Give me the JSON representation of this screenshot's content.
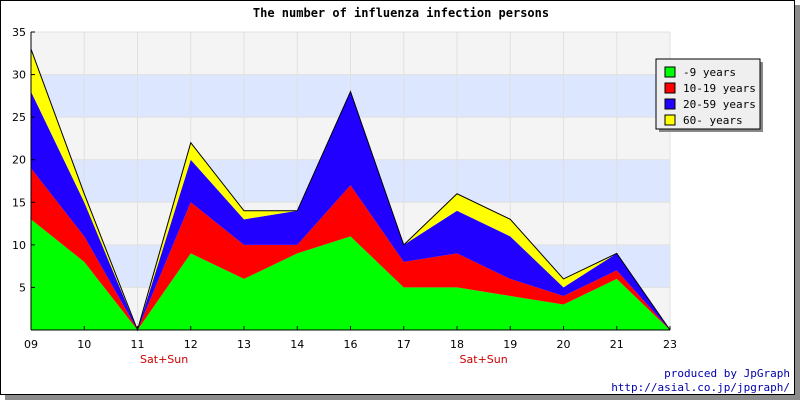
{
  "chart_data": {
    "type": "area",
    "stacked": true,
    "title": "The number of influenza infection persons",
    "categories": [
      "09",
      "10",
      "11",
      "12",
      "13",
      "14",
      "16",
      "17",
      "18",
      "19",
      "20",
      "21",
      "23"
    ],
    "weekend_marks": [
      {
        "after_index": 3,
        "label": "Sat+Sun"
      },
      {
        "after_index": 9,
        "label": "Sat+Sun"
      }
    ],
    "ylim": [
      0,
      35
    ],
    "yticks": [
      5,
      10,
      15,
      20,
      25,
      30,
      35
    ],
    "grid": true,
    "legend_position": "top-right",
    "series": [
      {
        "name": "-9 years",
        "color": "#00ff00",
        "values": [
          13,
          8,
          0,
          9,
          6,
          9,
          11,
          5,
          5,
          4,
          3,
          6,
          0
        ]
      },
      {
        "name": "10-19 years",
        "color": "#ff0000",
        "values": [
          6,
          3,
          0,
          6,
          4,
          1,
          6,
          3,
          4,
          2,
          1,
          1,
          0
        ]
      },
      {
        "name": "20-59 years",
        "color": "#2200ff",
        "values": [
          9,
          4,
          0,
          5,
          3,
          4,
          11,
          2,
          5,
          5,
          1,
          2,
          0
        ]
      },
      {
        "name": "60- years",
        "color": "#ffff00",
        "values": [
          5,
          1,
          0,
          2,
          1,
          0,
          0,
          0,
          2,
          2,
          1,
          0,
          0
        ]
      }
    ]
  },
  "credits": {
    "line1": "produced by JpGraph",
    "line2": "http://asial.co.jp/jpgraph/"
  }
}
